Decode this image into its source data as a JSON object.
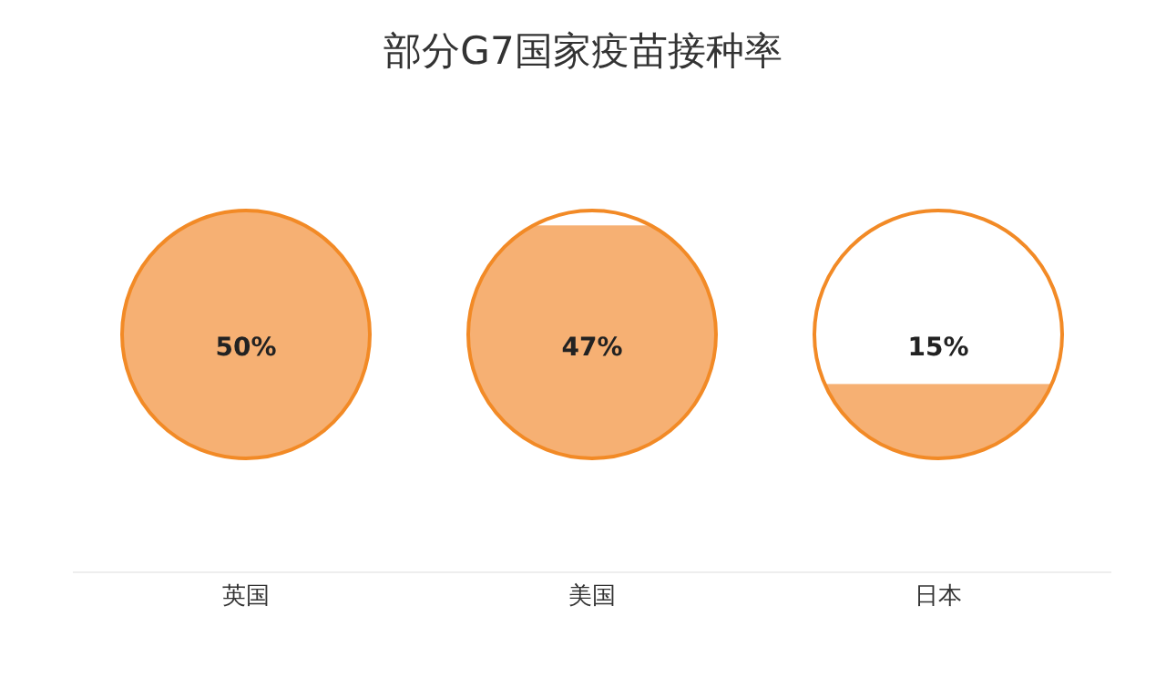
{
  "chart_data": {
    "type": "other",
    "title": "部分G7国家疫苗接种率",
    "categories": [
      "英国",
      "美国",
      "日本"
    ],
    "values": [
      50,
      47,
      15
    ],
    "value_labels": [
      "50%",
      "47%",
      "15%"
    ],
    "color": "#f6b073"
  }
}
